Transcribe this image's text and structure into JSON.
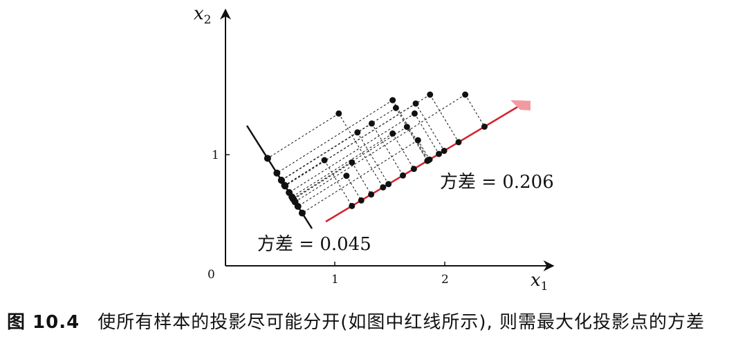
{
  "axes": {
    "x_label": "x",
    "x_sub": "1",
    "y_label": "x",
    "y_sub": "2",
    "origin": "0",
    "x_ticks": [
      "1",
      "2"
    ],
    "y_ticks": [
      "1"
    ]
  },
  "annotations": {
    "red_variance": "方差 = 0.206",
    "black_variance": "方差 = 0.045"
  },
  "colors": {
    "axis": "#111111",
    "points": "#111111",
    "projection_line_good": "#d4202b",
    "projection_line_bad": "#111111",
    "arrow_head": "#f29aa0"
  },
  "points": [
    [
      1.15,
      0.93
    ],
    [
      1.1,
      0.81
    ],
    [
      1.2,
      1.2
    ],
    [
      0.9,
      0.95
    ],
    [
      1.03,
      1.37
    ],
    [
      1.33,
      1.28
    ],
    [
      1.52,
      1.19
    ],
    [
      1.65,
      1.25
    ],
    [
      1.55,
      1.42
    ],
    [
      1.73,
      1.46
    ],
    [
      1.72,
      1.37
    ],
    [
      1.86,
      1.54
    ],
    [
      2.18,
      1.54
    ],
    [
      1.75,
      1.13
    ],
    [
      1.52,
      1.49
    ]
  ],
  "caption": {
    "number": "图 10.4",
    "text": "使所有样本的投影尽可能分开(如图中红线所示), 则需最大化投影点的方差"
  }
}
